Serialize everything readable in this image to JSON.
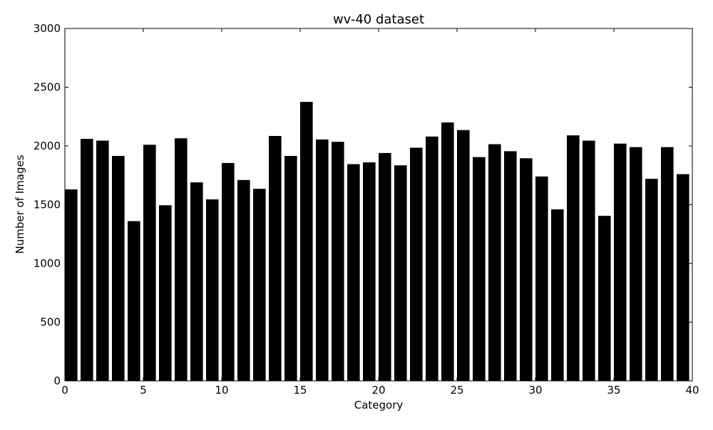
{
  "chart_data": {
    "type": "bar",
    "title": "wv-40 dataset",
    "xlabel": "Category",
    "ylabel": "Number of Images",
    "xlim": [
      0,
      40
    ],
    "ylim": [
      0,
      3000
    ],
    "xticks": [
      0,
      5,
      10,
      15,
      20,
      25,
      30,
      35,
      40
    ],
    "yticks": [
      0,
      500,
      1000,
      1500,
      2000,
      2500,
      3000
    ],
    "grid": false,
    "bar_color": "#000000",
    "bar_width": 0.8,
    "x": [
      0,
      1,
      2,
      3,
      4,
      5,
      6,
      7,
      8,
      9,
      10,
      11,
      12,
      13,
      14,
      15,
      16,
      17,
      18,
      19,
      20,
      21,
      22,
      23,
      24,
      25,
      26,
      27,
      28,
      29,
      30,
      31,
      32,
      33,
      34,
      35,
      36,
      37,
      38,
      39
    ],
    "values": [
      1630,
      2060,
      2045,
      1915,
      1360,
      2010,
      1495,
      2065,
      1690,
      1545,
      1855,
      1710,
      1635,
      2085,
      1915,
      2375,
      2055,
      2035,
      1845,
      1860,
      1940,
      1835,
      1985,
      2080,
      2200,
      2135,
      1905,
      2015,
      1955,
      1895,
      1740,
      1460,
      2090,
      2045,
      1405,
      2020,
      1990,
      1720,
      1990,
      1760
    ]
  }
}
